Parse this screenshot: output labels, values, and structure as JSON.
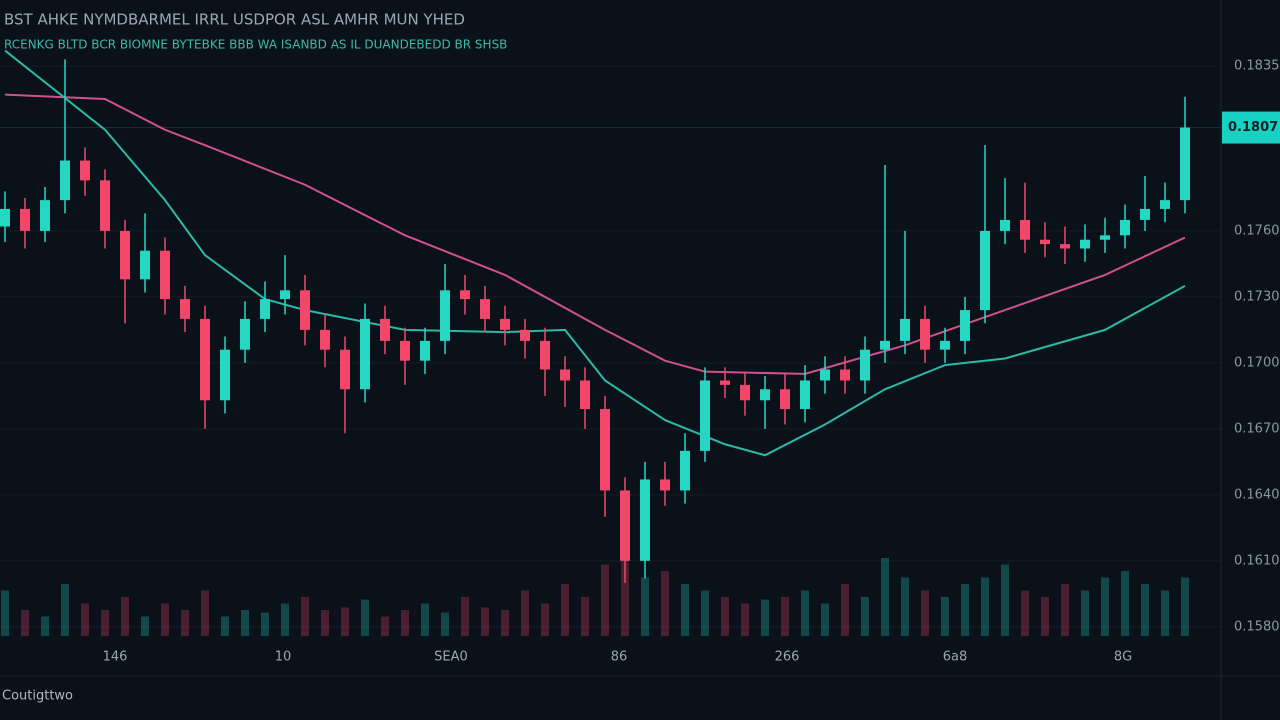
{
  "chart_data": {
    "type": "candlestick",
    "title": "BST AHKE NYMDBARMEL IRRL USDPOR ASL AMHR MUN YHED",
    "subtitle": "RCENKG BLTD BCR BIOMNE BYTEBKE BBB WA ISANBD AS IL DUANDEBEDD BR SHSB",
    "footer": "Coutigttwo",
    "x_labels": [
      "146",
      "10",
      "SEA0",
      "86",
      "266",
      "6a8",
      "8G"
    ],
    "up_color": "#26d7c4",
    "down_color": "#f2476a",
    "open": [
      0.1762,
      0.177,
      0.176,
      0.1774,
      0.1792,
      0.1783,
      0.176,
      0.1738,
      0.1751,
      0.1729,
      0.172,
      0.1683,
      0.1706,
      0.172,
      0.1729,
      0.1733,
      0.1715,
      0.1706,
      0.1688,
      0.172,
      0.171,
      0.1701,
      0.171,
      0.1733,
      0.1729,
      0.172,
      0.1715,
      0.171,
      0.1697,
      0.1692,
      0.1679,
      0.1642,
      0.161,
      0.1647,
      0.1642,
      0.166,
      0.1692,
      0.169,
      0.1683,
      0.1688,
      0.1679,
      0.1692,
      0.1697,
      0.1692,
      0.1706,
      0.171,
      0.172,
      0.1706,
      0.171,
      0.1724,
      0.176,
      0.1765,
      0.1756,
      0.1754,
      0.1752,
      0.1756,
      0.1758,
      0.1765,
      0.177,
      0.1774
    ],
    "high": [
      0.1778,
      0.1775,
      0.178,
      0.1838,
      0.1798,
      0.1788,
      0.1765,
      0.1768,
      0.1757,
      0.1735,
      0.1726,
      0.1712,
      0.1728,
      0.1737,
      0.1749,
      0.174,
      0.1722,
      0.1712,
      0.1727,
      0.1726,
      0.1716,
      0.1716,
      0.1745,
      0.174,
      0.1735,
      0.1726,
      0.172,
      0.1716,
      0.1703,
      0.1698,
      0.1685,
      0.1648,
      0.1655,
      0.1655,
      0.1668,
      0.1698,
      0.1698,
      0.1696,
      0.1694,
      0.1695,
      0.1699,
      0.1703,
      0.1703,
      0.1712,
      0.179,
      0.176,
      0.1726,
      0.1716,
      0.173,
      0.1799,
      0.1784,
      0.1782,
      0.1764,
      0.1762,
      0.1763,
      0.1766,
      0.1772,
      0.1785,
      0.1782,
      0.1821
    ],
    "low": [
      0.1755,
      0.1752,
      0.1755,
      0.1768,
      0.1776,
      0.1752,
      0.1718,
      0.1732,
      0.1722,
      0.1714,
      0.167,
      0.1677,
      0.17,
      0.1714,
      0.1722,
      0.1708,
      0.1698,
      0.1668,
      0.1682,
      0.1704,
      0.169,
      0.1695,
      0.1704,
      0.1722,
      0.1714,
      0.1708,
      0.1702,
      0.1685,
      0.168,
      0.167,
      0.163,
      0.16,
      0.1602,
      0.1635,
      0.1636,
      0.1655,
      0.1684,
      0.1676,
      0.167,
      0.1672,
      0.1673,
      0.1686,
      0.1686,
      0.1686,
      0.17,
      0.1704,
      0.17,
      0.17,
      0.1704,
      0.1718,
      0.1754,
      0.175,
      0.1748,
      0.1745,
      0.1746,
      0.175,
      0.1752,
      0.176,
      0.1764,
      0.1768
    ],
    "close": [
      0.177,
      0.176,
      0.1774,
      0.1792,
      0.1783,
      0.176,
      0.1738,
      0.1751,
      0.1729,
      0.172,
      0.1683,
      0.1706,
      0.172,
      0.1729,
      0.1733,
      0.1715,
      0.1706,
      0.1688,
      0.172,
      0.171,
      0.1701,
      0.171,
      0.1733,
      0.1729,
      0.172,
      0.1715,
      0.171,
      0.1697,
      0.1692,
      0.1679,
      0.1642,
      0.161,
      0.1647,
      0.1642,
      0.166,
      0.1692,
      0.169,
      0.1683,
      0.1688,
      0.1679,
      0.1692,
      0.1697,
      0.1692,
      0.1706,
      0.171,
      0.172,
      0.1706,
      0.171,
      0.1724,
      0.176,
      0.1765,
      0.1756,
      0.1754,
      0.1752,
      0.1756,
      0.1758,
      0.1765,
      0.177,
      0.1774,
      0.1807
    ],
    "volume": [
      35,
      20,
      15,
      40,
      25,
      20,
      30,
      15,
      25,
      20,
      35,
      15,
      20,
      18,
      25,
      30,
      20,
      22,
      28,
      15,
      20,
      25,
      18,
      30,
      22,
      20,
      35,
      25,
      40,
      30,
      55,
      60,
      45,
      50,
      40,
      35,
      30,
      25,
      28,
      30,
      35,
      25,
      40,
      30,
      60,
      45,
      35,
      30,
      40,
      45,
      55,
      35,
      30,
      40,
      35,
      45,
      50,
      40,
      35,
      45
    ],
    "vlim": [
      0,
      100
    ],
    "lines": [
      {
        "color": "#d0508f",
        "x": [
          0,
          5,
          8,
          10,
          15,
          20,
          25,
          30,
          33,
          35,
          40,
          45,
          50,
          55,
          59
        ],
        "values": [
          0.1822,
          0.182,
          0.1806,
          0.1799,
          0.1781,
          0.1758,
          0.174,
          0.1715,
          0.1701,
          0.1696,
          0.1695,
          0.1708,
          0.1724,
          0.174,
          0.1757
        ]
      },
      {
        "color": "#2bb9a8",
        "x": [
          0,
          5,
          8,
          10,
          13,
          15,
          20,
          25,
          28,
          30,
          33,
          36,
          38,
          41,
          44,
          47,
          50,
          55,
          59
        ],
        "values": [
          0.1842,
          0.1806,
          0.1774,
          0.1749,
          0.1729,
          0.1724,
          0.1715,
          0.1714,
          0.1715,
          0.1692,
          0.1674,
          0.1663,
          0.1658,
          0.1672,
          0.1688,
          0.1699,
          0.1702,
          0.1715,
          0.1735
        ]
      }
    ],
    "ylim": [
      0.1574,
      0.1865
    ],
    "yticks": [
      {
        "value": 0.1835,
        "label": "0.1835"
      },
      {
        "value": 0.176,
        "label": "0.1760"
      },
      {
        "value": 0.173,
        "label": "0.1730"
      },
      {
        "value": 0.17,
        "label": "0.1700"
      },
      {
        "value": 0.167,
        "label": "0.1670"
      },
      {
        "value": 0.164,
        "label": "0.1640"
      },
      {
        "value": 0.161,
        "label": "0.1610"
      },
      {
        "value": 0.158,
        "label": "0.1580"
      }
    ],
    "price_tag": {
      "value": 0.1807,
      "label": "0.1807"
    },
    "grid": true
  }
}
